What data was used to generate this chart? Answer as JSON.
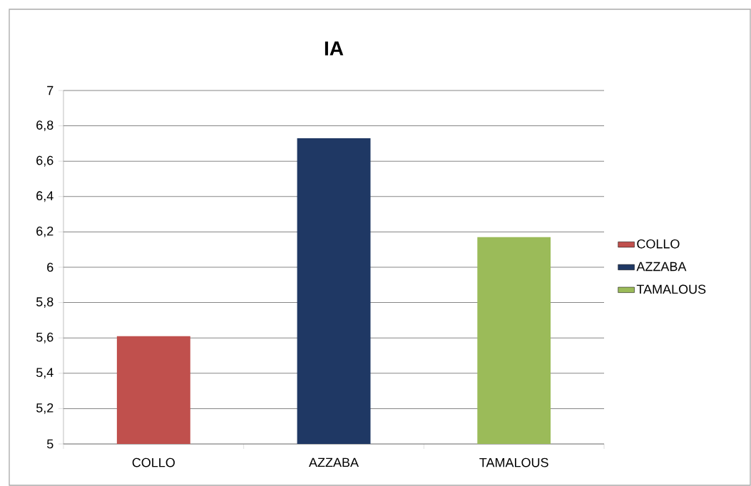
{
  "chart_data": {
    "type": "bar",
    "title": "IA",
    "categories": [
      "COLLO",
      "AZZABA",
      "TAMALOUS"
    ],
    "series": [
      {
        "name": "COLLO",
        "color": "#c0504d",
        "values": [
          5.61,
          null,
          null
        ]
      },
      {
        "name": "AZZABA",
        "color": "#1f3864",
        "values": [
          null,
          6.73,
          null
        ]
      },
      {
        "name": "TAMALOUS",
        "color": "#9bbb59",
        "values": [
          null,
          null,
          6.17
        ]
      }
    ],
    "ylim": [
      5,
      7
    ],
    "yticks": [
      5,
      {
        "value": 5.2,
        "label": "5,2"
      },
      {
        "value": 5.4,
        "label": "5,4"
      },
      {
        "value": 5.6,
        "label": "5,6"
      },
      {
        "value": 5.8,
        "label": "5,8"
      },
      6,
      {
        "value": 6.2,
        "label": "6,2"
      },
      {
        "value": 6.4,
        "label": "6,4"
      },
      {
        "value": 6.6,
        "label": "6,6"
      },
      {
        "value": 6.8,
        "label": "6,8"
      },
      7
    ],
    "grid": "y",
    "legend": "right"
  }
}
